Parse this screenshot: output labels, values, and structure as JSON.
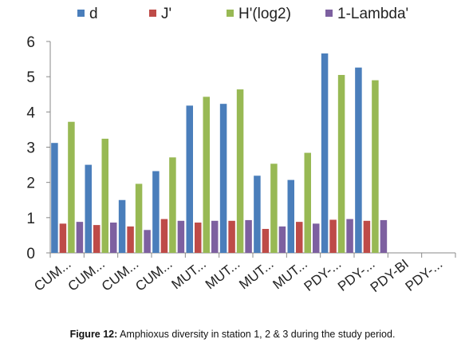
{
  "chart_data": {
    "type": "bar",
    "categories": [
      "CUM...",
      "CUM...",
      "CUM...",
      "CUM...",
      "MUT...",
      "MUT...",
      "MUT...",
      "MUT...",
      "PDY-...",
      "PDY-...",
      "PDY-BI",
      "PDY-..."
    ],
    "series": [
      {
        "name": "d",
        "color": "#4a7ebb",
        "values": [
          3.12,
          2.5,
          1.5,
          2.32,
          4.18,
          4.23,
          2.19,
          2.07,
          5.66,
          5.26,
          null,
          null
        ]
      },
      {
        "name": "J'",
        "color": "#be4b48",
        "values": [
          0.83,
          0.79,
          0.75,
          0.96,
          0.86,
          0.91,
          0.68,
          0.88,
          0.94,
          0.91,
          null,
          null
        ]
      },
      {
        "name": "H'(log2)",
        "color": "#98b954",
        "values": [
          3.72,
          3.24,
          1.96,
          2.71,
          4.43,
          4.64,
          2.53,
          2.84,
          5.05,
          4.9,
          null,
          null
        ]
      },
      {
        "name": "1-Lambda'",
        "color": "#7d60a0",
        "values": [
          0.88,
          0.86,
          0.65,
          0.91,
          0.91,
          0.93,
          0.75,
          0.83,
          0.96,
          0.93,
          null,
          null
        ]
      }
    ],
    "yticks": [
      0,
      1,
      2,
      3,
      4,
      5,
      6
    ],
    "ylim": [
      0,
      6
    ],
    "grid": false,
    "legend": "top"
  },
  "caption": {
    "label": "Figure 12:",
    "text": " Amphioxus diversity in station 1, 2 & 3 during the study period."
  }
}
